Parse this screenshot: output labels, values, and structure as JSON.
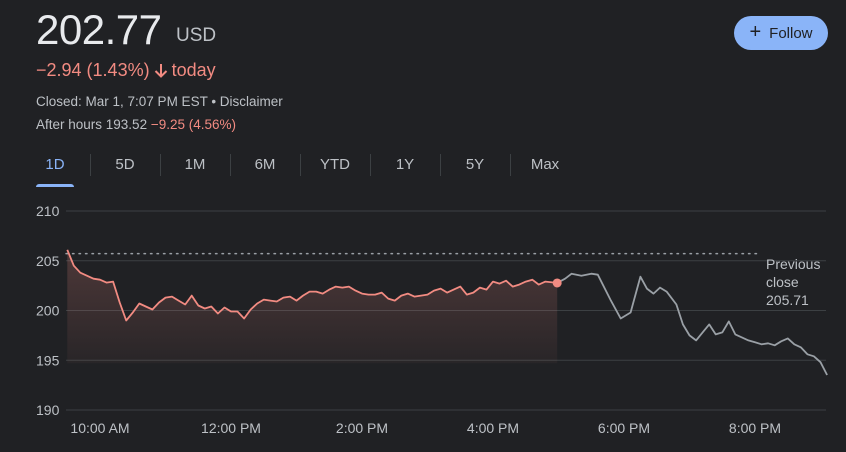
{
  "quote": {
    "price": "202.77",
    "currency": "USD",
    "change": "−2.94 (1.43%)",
    "change_period": "today",
    "closed_text": "Closed: Mar 1, 7:07 PM EST • Disclaimer",
    "after_hours_label": "After hours 193.52",
    "after_hours_change": "−9.25 (4.56%)"
  },
  "follow_button": {
    "label": "Follow"
  },
  "tabs": [
    {
      "label": "1D",
      "active": true
    },
    {
      "label": "5D",
      "active": false
    },
    {
      "label": "1M",
      "active": false
    },
    {
      "label": "6M",
      "active": false
    },
    {
      "label": "YTD",
      "active": false
    },
    {
      "label": "1Y",
      "active": false
    },
    {
      "label": "5Y",
      "active": false
    },
    {
      "label": "Max",
      "active": false
    }
  ],
  "colors": {
    "background": "#202124",
    "negative": "#f28b82",
    "accent": "#8ab4f8",
    "after_hours_line": "#9aa0a6"
  },
  "chart_data": {
    "type": "line",
    "x_unit": "hour of day",
    "xlim": [
      9.0,
      9.5
    ],
    "ylim": [
      190,
      210
    ],
    "y_ticks": [
      {
        "value": 210,
        "label": "210"
      },
      {
        "value": 205,
        "label": "205"
      },
      {
        "value": 200,
        "label": "200"
      },
      {
        "value": 195,
        "label": "195"
      },
      {
        "value": 190,
        "label": "190"
      }
    ],
    "x_ticks": [
      {
        "value": 10,
        "label": "10:00 AM"
      },
      {
        "value": 12,
        "label": "12:00 PM"
      },
      {
        "value": 14,
        "label": "2:00 PM"
      },
      {
        "value": 16,
        "label": "4:00 PM"
      },
      {
        "value": 18,
        "label": "6:00 PM"
      },
      {
        "value": 20,
        "label": "8:00 PM"
      }
    ],
    "previous_close": {
      "value": 205.71,
      "label_line1": "Previous",
      "label_line2": "close",
      "label_value": "205.71"
    },
    "series": [
      {
        "session": "regular",
        "color": "#f28b82",
        "points": [
          [
            9.5,
            206.1
          ],
          [
            9.6,
            204.5
          ],
          [
            9.7,
            203.8
          ],
          [
            9.9,
            203.2
          ],
          [
            10.0,
            203.1
          ],
          [
            10.1,
            202.8
          ],
          [
            10.2,
            202.9
          ],
          [
            10.3,
            200.8
          ],
          [
            10.4,
            199.0
          ],
          [
            10.5,
            199.8
          ],
          [
            10.6,
            200.7
          ],
          [
            10.7,
            200.4
          ],
          [
            10.8,
            200.1
          ],
          [
            10.9,
            200.8
          ],
          [
            11.0,
            201.3
          ],
          [
            11.1,
            201.4
          ],
          [
            11.2,
            201.0
          ],
          [
            11.3,
            200.6
          ],
          [
            11.4,
            201.5
          ],
          [
            11.5,
            200.5
          ],
          [
            11.6,
            200.2
          ],
          [
            11.7,
            200.4
          ],
          [
            11.8,
            199.7
          ],
          [
            11.9,
            200.3
          ],
          [
            12.0,
            199.9
          ],
          [
            12.1,
            199.9
          ],
          [
            12.2,
            199.2
          ],
          [
            12.3,
            200.1
          ],
          [
            12.4,
            200.7
          ],
          [
            12.5,
            201.1
          ],
          [
            12.6,
            201.0
          ],
          [
            12.7,
            200.9
          ],
          [
            12.8,
            201.3
          ],
          [
            12.9,
            201.4
          ],
          [
            13.0,
            201.0
          ],
          [
            13.1,
            201.5
          ],
          [
            13.2,
            201.9
          ],
          [
            13.3,
            201.9
          ],
          [
            13.4,
            201.7
          ],
          [
            13.5,
            202.1
          ],
          [
            13.6,
            202.4
          ],
          [
            13.7,
            202.3
          ],
          [
            13.8,
            202.4
          ],
          [
            13.9,
            202.0
          ],
          [
            14.0,
            201.7
          ],
          [
            14.1,
            201.6
          ],
          [
            14.2,
            201.6
          ],
          [
            14.3,
            201.8
          ],
          [
            14.4,
            201.2
          ],
          [
            14.5,
            201.0
          ],
          [
            14.6,
            201.5
          ],
          [
            14.7,
            201.7
          ],
          [
            14.8,
            201.4
          ],
          [
            14.9,
            201.5
          ],
          [
            15.0,
            201.6
          ],
          [
            15.1,
            202.0
          ],
          [
            15.2,
            202.2
          ],
          [
            15.3,
            201.8
          ],
          [
            15.4,
            202.1
          ],
          [
            15.5,
            202.4
          ],
          [
            15.6,
            201.6
          ],
          [
            15.7,
            201.8
          ],
          [
            15.8,
            202.3
          ],
          [
            15.9,
            202.1
          ],
          [
            16.0,
            202.9
          ],
          [
            16.1,
            202.7
          ],
          [
            16.2,
            203.0
          ],
          [
            16.3,
            202.4
          ],
          [
            16.4,
            202.6
          ],
          [
            16.5,
            202.9
          ],
          [
            16.6,
            203.1
          ],
          [
            16.7,
            202.6
          ],
          [
            16.8,
            202.9
          ],
          [
            16.98,
            202.77
          ]
        ]
      },
      {
        "session": "after_hours",
        "color": "#9aa0a6",
        "points": [
          [
            16.98,
            202.77
          ],
          [
            17.1,
            203.2
          ],
          [
            17.2,
            203.7
          ],
          [
            17.35,
            203.5
          ],
          [
            17.5,
            203.7
          ],
          [
            17.6,
            203.6
          ],
          [
            17.8,
            201.0
          ],
          [
            17.95,
            199.2
          ],
          [
            18.1,
            199.8
          ],
          [
            18.25,
            203.4
          ],
          [
            18.35,
            202.2
          ],
          [
            18.45,
            201.7
          ],
          [
            18.55,
            202.3
          ],
          [
            18.65,
            201.9
          ],
          [
            18.8,
            200.6
          ],
          [
            18.9,
            198.6
          ],
          [
            19.0,
            197.5
          ],
          [
            19.1,
            197.0
          ],
          [
            19.2,
            197.8
          ],
          [
            19.3,
            198.6
          ],
          [
            19.4,
            197.6
          ],
          [
            19.5,
            197.8
          ],
          [
            19.6,
            198.9
          ],
          [
            19.7,
            197.6
          ],
          [
            19.8,
            197.3
          ],
          [
            19.9,
            197.0
          ],
          [
            20.0,
            196.8
          ],
          [
            20.1,
            196.6
          ],
          [
            20.2,
            196.7
          ],
          [
            20.3,
            196.5
          ],
          [
            20.4,
            196.9
          ],
          [
            20.5,
            197.2
          ],
          [
            20.6,
            196.6
          ],
          [
            20.7,
            196.3
          ],
          [
            20.8,
            195.6
          ],
          [
            20.9,
            195.4
          ],
          [
            21.0,
            194.8
          ],
          [
            21.1,
            193.52
          ]
        ]
      }
    ],
    "last_regular_marker": {
      "x": 16.98,
      "y": 202.77
    }
  }
}
